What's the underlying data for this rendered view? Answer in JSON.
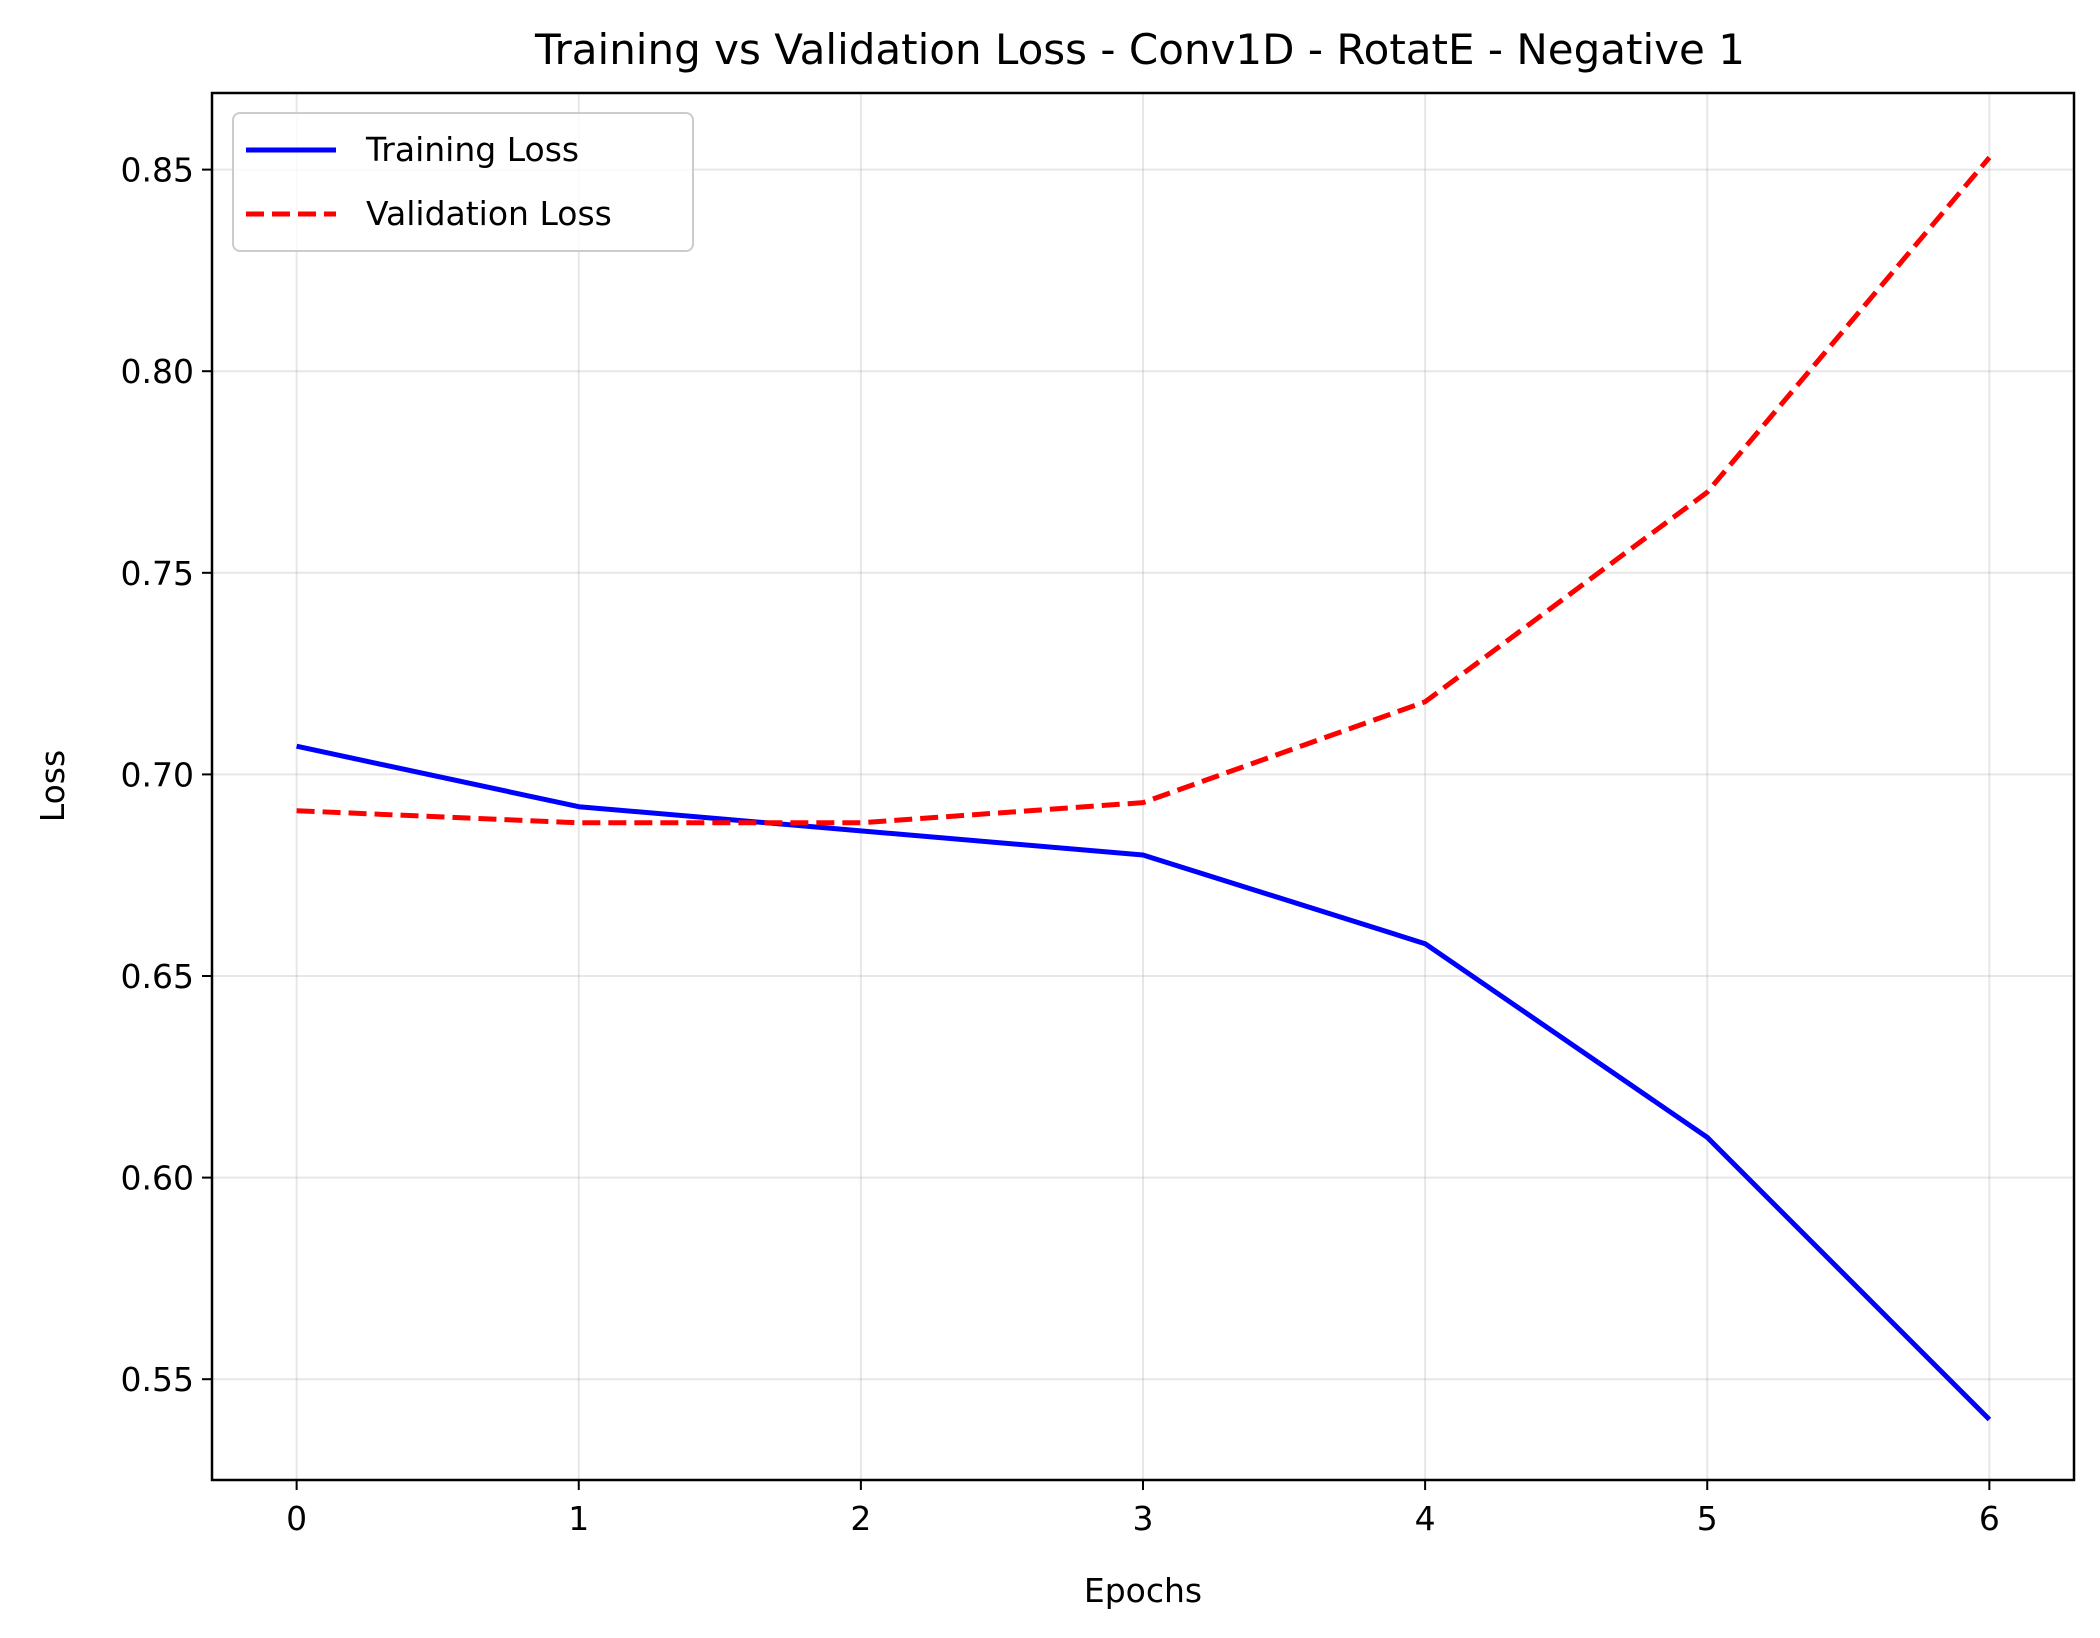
{
  "chart_data": {
    "type": "line",
    "title": "Training vs Validation Loss - Conv1D - RotatE - Negative 1",
    "xlabel": "Epochs",
    "ylabel": "Loss",
    "x": [
      0,
      1,
      2,
      3,
      4,
      5,
      6
    ],
    "xlim": [
      -0.3,
      6.3
    ],
    "ylim": [
      0.525,
      0.869
    ],
    "xticks": [
      0,
      1,
      2,
      3,
      4,
      5,
      6
    ],
    "xtick_labels": [
      "0",
      "1",
      "2",
      "3",
      "4",
      "5",
      "6"
    ],
    "yticks": [
      0.55,
      0.6,
      0.65,
      0.7,
      0.75,
      0.8,
      0.85
    ],
    "ytick_labels": [
      "0.55",
      "0.60",
      "0.65",
      "0.70",
      "0.75",
      "0.80",
      "0.85"
    ],
    "grid": true,
    "legend_position": "top-left",
    "series": [
      {
        "name": "Training Loss",
        "values": [
          0.707,
          0.692,
          0.686,
          0.68,
          0.658,
          0.61,
          0.54
        ],
        "color": "#0000ff",
        "style": "solid"
      },
      {
        "name": "Validation Loss",
        "values": [
          0.691,
          0.688,
          0.688,
          0.693,
          0.718,
          0.77,
          0.853
        ],
        "color": "#ff0000",
        "style": "dashed"
      }
    ]
  }
}
